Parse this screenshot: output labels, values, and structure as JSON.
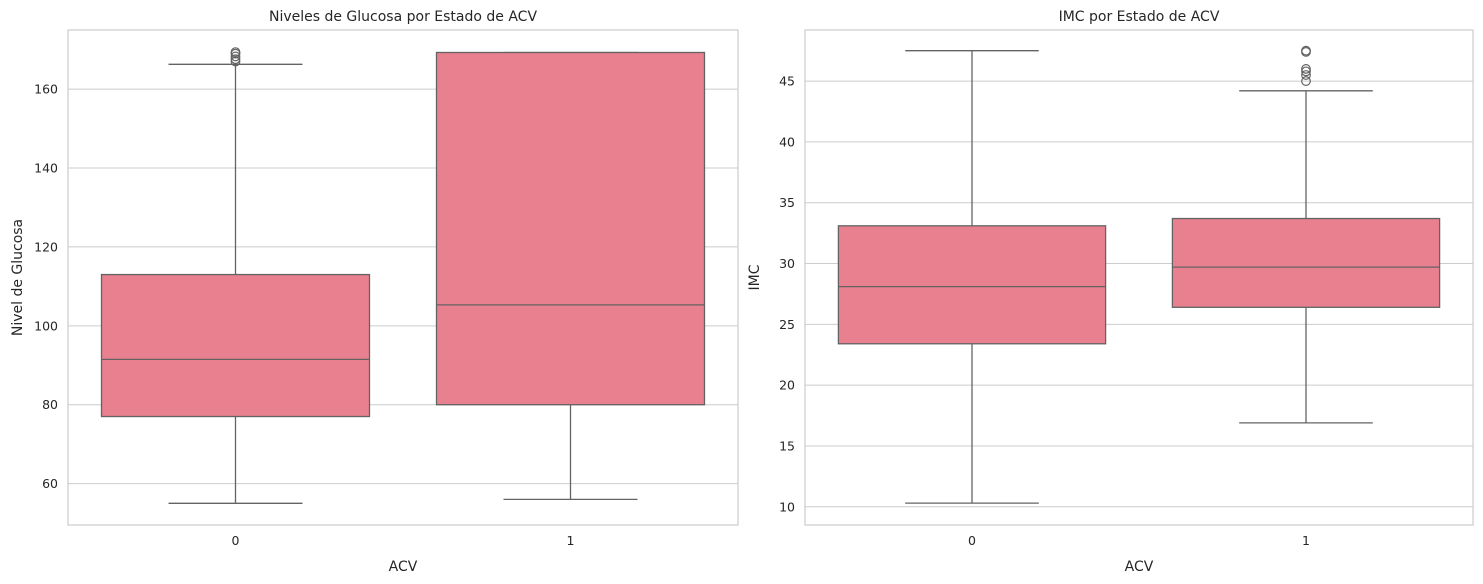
{
  "chart_data": [
    {
      "type": "box",
      "title": "Niveles de Glucosa por Estado de ACV",
      "xlabel": "ACV",
      "ylabel": "Nivel de Glucosa",
      "categories": [
        "0",
        "1"
      ],
      "ylim": [
        49.5,
        175
      ],
      "yticks": [
        60,
        80,
        100,
        120,
        140,
        160
      ],
      "grid": "horizontal",
      "box_color": "#e8808f",
      "line_color": "#636363",
      "boxes": [
        {
          "category": "0",
          "whisker_low": 55,
          "q1": 77,
          "median": 91.5,
          "q3": 113,
          "whisker_high": 166.3,
          "outliers": [
            167,
            167.6,
            168.3,
            169,
            169.4
          ]
        },
        {
          "category": "1",
          "whisker_low": 56,
          "q1": 80,
          "median": 105.3,
          "q3": 169.3,
          "whisker_high": 169.3,
          "outliers": []
        }
      ]
    },
    {
      "type": "box",
      "title": "IMC por Estado de ACV",
      "xlabel": "ACV",
      "ylabel": "IMC",
      "categories": [
        "0",
        "1"
      ],
      "ylim": [
        8.5,
        49.2
      ],
      "yticks": [
        10,
        15,
        20,
        25,
        30,
        35,
        40,
        45
      ],
      "grid": "horizontal",
      "box_color": "#e8808f",
      "line_color": "#636363",
      "boxes": [
        {
          "category": "0",
          "whisker_low": 10.3,
          "q1": 23.4,
          "median": 28.1,
          "q3": 33.1,
          "whisker_high": 47.5,
          "outliers": []
        },
        {
          "category": "1",
          "whisker_low": 16.9,
          "q1": 26.4,
          "median": 29.7,
          "q3": 33.7,
          "whisker_high": 44.2,
          "outliers": [
            45,
            45.5,
            45.8,
            46,
            47.4,
            47.5
          ]
        }
      ]
    }
  ]
}
